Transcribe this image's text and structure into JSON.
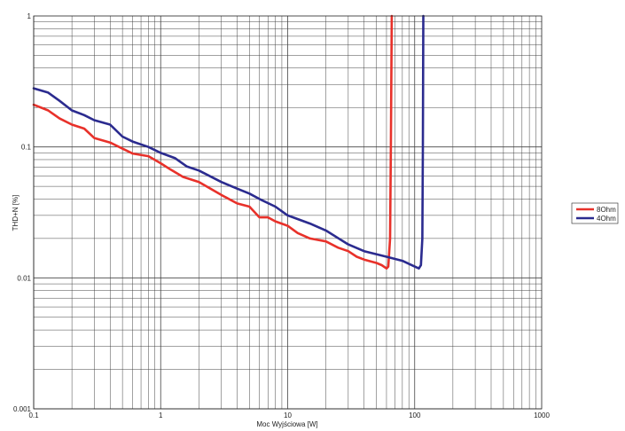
{
  "chart_data": {
    "type": "line",
    "xlabel": "Moc Wyjściowa [W]",
    "ylabel": "THD+N [%]",
    "xscale": "log",
    "yscale": "log",
    "xlim": [
      0.1,
      1000
    ],
    "ylim": [
      0.001,
      1
    ],
    "x_ticks": [
      "0.1",
      "1",
      "10",
      "100",
      "1000"
    ],
    "y_ticks": [
      "0.001",
      "0.01",
      "0.1",
      "1"
    ],
    "grid": true,
    "legend_position": "right",
    "series": [
      {
        "name": "8Ohm",
        "color": "#e8312a",
        "points": [
          [
            0.1,
            0.21
          ],
          [
            0.13,
            0.19
          ],
          [
            0.16,
            0.165
          ],
          [
            0.2,
            0.148
          ],
          [
            0.25,
            0.138
          ],
          [
            0.3,
            0.117
          ],
          [
            0.4,
            0.108
          ],
          [
            0.5,
            0.097
          ],
          [
            0.6,
            0.089
          ],
          [
            0.8,
            0.085
          ],
          [
            1.0,
            0.075
          ],
          [
            1.2,
            0.067
          ],
          [
            1.5,
            0.059
          ],
          [
            2.0,
            0.054
          ],
          [
            3.0,
            0.043
          ],
          [
            4.0,
            0.037
          ],
          [
            5.0,
            0.035
          ],
          [
            6.0,
            0.029
          ],
          [
            7.0,
            0.029
          ],
          [
            8.0,
            0.027
          ],
          [
            10.0,
            0.025
          ],
          [
            12.0,
            0.022
          ],
          [
            15.0,
            0.02
          ],
          [
            20.0,
            0.019
          ],
          [
            25.0,
            0.017
          ],
          [
            30.0,
            0.016
          ],
          [
            35.0,
            0.0145
          ],
          [
            40.0,
            0.0138
          ],
          [
            50.0,
            0.013
          ],
          [
            55.0,
            0.0125
          ],
          [
            60.0,
            0.0118
          ],
          [
            62.0,
            0.0122
          ],
          [
            64.0,
            0.02
          ],
          [
            65.0,
            0.1
          ],
          [
            66.0,
            1.0
          ]
        ]
      },
      {
        "name": "4Ohm",
        "color": "#2b2b8f",
        "points": [
          [
            0.1,
            0.28
          ],
          [
            0.13,
            0.26
          ],
          [
            0.16,
            0.225
          ],
          [
            0.2,
            0.19
          ],
          [
            0.25,
            0.175
          ],
          [
            0.3,
            0.16
          ],
          [
            0.4,
            0.148
          ],
          [
            0.5,
            0.12
          ],
          [
            0.6,
            0.11
          ],
          [
            0.8,
            0.1
          ],
          [
            1.0,
            0.09
          ],
          [
            1.3,
            0.082
          ],
          [
            1.6,
            0.071
          ],
          [
            2.0,
            0.066
          ],
          [
            3.0,
            0.054
          ],
          [
            4.0,
            0.048
          ],
          [
            5.0,
            0.044
          ],
          [
            6.0,
            0.04
          ],
          [
            8.0,
            0.035
          ],
          [
            10.0,
            0.03
          ],
          [
            15.0,
            0.026
          ],
          [
            20.0,
            0.023
          ],
          [
            30.0,
            0.018
          ],
          [
            40.0,
            0.016
          ],
          [
            60.0,
            0.0145
          ],
          [
            80.0,
            0.0135
          ],
          [
            100.0,
            0.0122
          ],
          [
            108.0,
            0.0118
          ],
          [
            112.0,
            0.0125
          ],
          [
            115.0,
            0.02
          ],
          [
            116.0,
            0.1
          ],
          [
            117.0,
            1.0
          ]
        ]
      }
    ]
  }
}
